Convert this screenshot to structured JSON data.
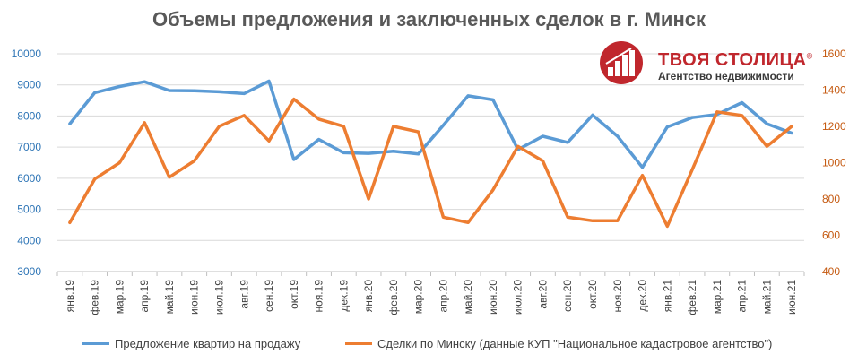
{
  "chart_data": {
    "type": "line",
    "title": "Объемы предложения и заключенных сделок в г. Минск",
    "categories": [
      "янв.19",
      "фев.19",
      "мар.19",
      "апр.19",
      "май.19",
      "июн.19",
      "июл.19",
      "авг.19",
      "сен.19",
      "окт.19",
      "ноя.19",
      "дек.19",
      "янв.20",
      "фев.20",
      "мар.20",
      "апр.20",
      "май.20",
      "июн.20",
      "июл.20",
      "авг.20",
      "сен.20",
      "окт.20",
      "ноя.20",
      "дек.20",
      "янв.21",
      "фев.21",
      "мар.21",
      "апр.21",
      "май.21",
      "июн.21"
    ],
    "series": [
      {
        "name": "Предложение квартир на продажу",
        "axis": "left",
        "color": "#5b9bd5",
        "values": [
          7750,
          8750,
          8950,
          9100,
          8820,
          8810,
          8780,
          8720,
          9120,
          6600,
          7250,
          6820,
          6800,
          6870,
          6780,
          7700,
          8650,
          8520,
          6920,
          7350,
          7150,
          8030,
          7350,
          6350,
          7650,
          7950,
          8050,
          8430,
          7750,
          7450
        ]
      },
      {
        "name": "Сделки по Минску (данные КУП \"Национальное кадастровое агентство\")",
        "axis": "right",
        "color": "#ed7d31",
        "values": [
          670,
          910,
          1000,
          1220,
          920,
          1010,
          1200,
          1260,
          1120,
          1350,
          1240,
          1200,
          800,
          1200,
          1170,
          700,
          670,
          850,
          1090,
          1010,
          700,
          680,
          680,
          930,
          650,
          960,
          1280,
          1260,
          1090,
          1200
        ]
      }
    ],
    "y_left": {
      "min": 3000,
      "max": 10000,
      "ticks": [
        3000,
        4000,
        5000,
        6000,
        7000,
        8000,
        9000,
        10000
      ],
      "color": "#2e75b6"
    },
    "y_right": {
      "min": 400,
      "max": 1600,
      "ticks": [
        400,
        600,
        800,
        1000,
        1200,
        1400,
        1600
      ],
      "color": "#c55a11"
    },
    "grid": true,
    "legend": "bottom"
  },
  "logo": {
    "wordmark": "ТВОЯ СТОЛИЦА",
    "registered": "®",
    "subtitle": "Агентство недвижимости",
    "color": "#c0272d"
  }
}
